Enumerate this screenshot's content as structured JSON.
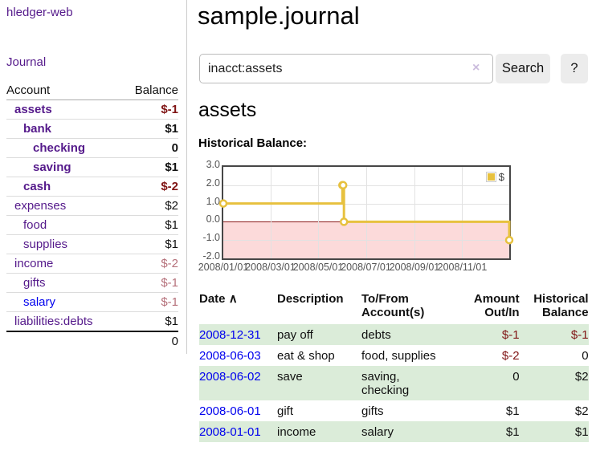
{
  "app": {
    "brand": "hledger-web"
  },
  "nav": {
    "journal": "Journal"
  },
  "sidebar": {
    "header": {
      "account": "Account",
      "balance": "Balance"
    },
    "accounts": [
      {
        "name": "assets",
        "indent": 1,
        "bold": true,
        "balance": "$-1",
        "neg": "strong"
      },
      {
        "name": "bank",
        "indent": 2,
        "bold": true,
        "balance": "$1"
      },
      {
        "name": "checking",
        "indent": 3,
        "bold": true,
        "balance": "0"
      },
      {
        "name": "saving",
        "indent": 3,
        "bold": true,
        "balance": "$1"
      },
      {
        "name": "cash",
        "indent": 2,
        "bold": true,
        "balance": "$-2",
        "neg": "strong"
      },
      {
        "name": "expenses",
        "indent": 1,
        "bold": false,
        "balance": "$2"
      },
      {
        "name": "food",
        "indent": 2,
        "bold": false,
        "balance": "$1"
      },
      {
        "name": "supplies",
        "indent": 2,
        "bold": false,
        "balance": "$1"
      },
      {
        "name": "income",
        "indent": 1,
        "bold": false,
        "balance": "$-2",
        "neg": "soft"
      },
      {
        "name": "gifts",
        "indent": 2,
        "bold": false,
        "balance": "$-1",
        "neg": "soft"
      },
      {
        "name": "salary",
        "indent": 2,
        "bold": false,
        "balance": "$-1",
        "neg": "soft",
        "link_color": "blue"
      },
      {
        "name": "liabilities:debts",
        "indent": 1,
        "bold": false,
        "balance": "$1"
      }
    ],
    "total": "0"
  },
  "header": {
    "title": "sample.journal"
  },
  "search": {
    "value": "inacct:assets",
    "clear_icon": "×",
    "button": "Search",
    "help_button": "?"
  },
  "account_page": {
    "heading": "assets"
  },
  "chart_data": {
    "type": "line",
    "title": "Historical Balance:",
    "series": [
      {
        "name": "$",
        "color": "#e7c13f",
        "style": "steps-with-points",
        "points": [
          {
            "x": "2008-01-01",
            "y": 1
          },
          {
            "x": "2008-06-01",
            "y": 2
          },
          {
            "x": "2008-06-02",
            "y": 2
          },
          {
            "x": "2008-06-03",
            "y": 0
          },
          {
            "x": "2008-12-31",
            "y": -1
          }
        ]
      }
    ],
    "x_range": [
      "2008-01-01",
      "2008-12-31"
    ],
    "x_ticks": [
      "2008/01/01",
      "2008/03/01",
      "2008/05/01",
      "2008/07/01",
      "2008/09/01",
      "2008/11/01"
    ],
    "y_ticks": [
      "3.0",
      "2.0",
      "1.0",
      "0.0",
      "-1.0",
      "-2.0"
    ],
    "ylim": [
      -2,
      3
    ],
    "grid": true,
    "legend_position": "top-right",
    "negative_region_color": "#fcdada",
    "zero_line_color": "#8b1a1a"
  },
  "register": {
    "columns": {
      "date": "Date ",
      "sort_indicator": "∧",
      "description": "Description",
      "accounts_line1": "To/From",
      "accounts_line2": "Account(s)",
      "amount_line1": "Amount",
      "amount_line2": "Out/In",
      "balance_line1": "Historical",
      "balance_line2": "Balance"
    },
    "rows": [
      {
        "date": "2008-12-31",
        "description": "pay off",
        "accounts_lines": [
          "debts"
        ],
        "amount": "$-1",
        "balance": "$-1"
      },
      {
        "date": "2008-06-03",
        "description": "eat & shop",
        "accounts_lines": [
          "food, supplies"
        ],
        "amount": "$-2",
        "balance": "0"
      },
      {
        "date": "2008-06-02",
        "description": "save",
        "accounts_lines": [
          "saving,",
          "checking"
        ],
        "amount": "0",
        "balance": "$2"
      },
      {
        "date": "2008-06-01",
        "description": "gift",
        "accounts_lines": [
          "gifts"
        ],
        "amount": "$1",
        "balance": "$2"
      },
      {
        "date": "2008-01-01",
        "description": "income",
        "accounts_lines": [
          "salary"
        ],
        "amount": "$1",
        "balance": "$1"
      }
    ]
  }
}
